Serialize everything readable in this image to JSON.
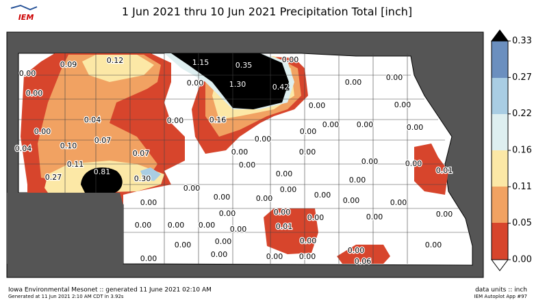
{
  "header": {
    "title": "1 Jun 2021 thru 10 Jun 2021 Precipitation Total [inch]",
    "logo": "IEM"
  },
  "colorbar": {
    "ticks": [
      "0.00",
      "0.05",
      "0.11",
      "0.16",
      "0.22",
      "0.27",
      "0.33"
    ]
  },
  "stations": [
    "0.09",
    "0.12",
    "1.15",
    "0.35",
    "0.00",
    "0.00",
    "0.00",
    "0.00",
    "1.30",
    "0.42",
    "0.00",
    "0.00",
    "0.00",
    "0.00",
    "0.04",
    "0.00",
    "0.16",
    "0.00",
    "0.00",
    "0.00",
    "0.00",
    "0.04",
    "0.10",
    "0.07",
    "0.07",
    "0.00",
    "0.00",
    "0.00",
    "0.00",
    "0.00",
    "0.00",
    "0.01",
    "0.11",
    "0.81",
    "0.27",
    "0.30",
    "0.00",
    "0.00",
    "0.00",
    "0.00",
    "0.00",
    "0.00",
    "0.00",
    "0.00",
    "0.00",
    "0.00",
    "0.00",
    "0.00",
    "0.00",
    "0.00",
    "0.00",
    "0.00",
    "0.00",
    "0.00",
    "0.00",
    "0.00",
    "0.01",
    "0.00",
    "0.00",
    "0.00",
    "0.00",
    "0.00",
    "0.00",
    "0.00",
    "0.00",
    "0.06",
    "0.00"
  ],
  "footer": {
    "left": "Iowa Environmental Mesonet :: generated 11 June 2021 02:10 AM",
    "left_small": "Generated at 11 Jun 2021 2:10 AM CDT in 3.92s",
    "right": "data units :: inch",
    "right_small": "IEM Autoplot App #97"
  }
}
